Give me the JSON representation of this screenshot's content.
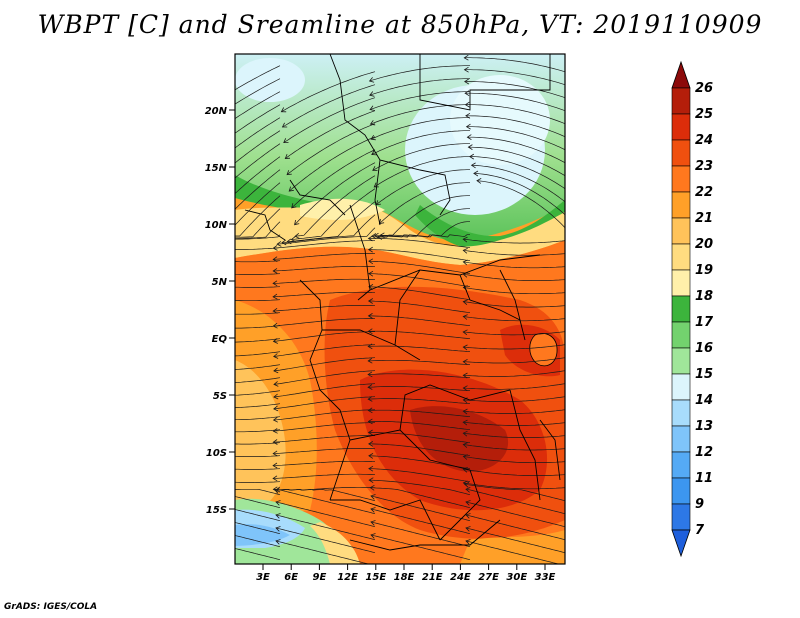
{
  "title": "WBPT [C] and Sreamline at 850hPa, VT: 2019110909",
  "footer": "GrADS: IGES/COLA",
  "map": {
    "lat_labels": [
      "20N",
      "15N",
      "10N",
      "5N",
      "EQ",
      "5S",
      "10S",
      "15S"
    ],
    "lon_labels": [
      "3E",
      "6E",
      "9E",
      "12E",
      "15E",
      "18E",
      "21E",
      "24E",
      "27E",
      "30E",
      "33E"
    ],
    "field": "WBPT",
    "units": "C",
    "level": "850hPa",
    "overlay": "streamlines"
  },
  "colorbar": {
    "levels": [
      "7",
      "9",
      "11",
      "12",
      "13",
      "14",
      "15",
      "16",
      "17",
      "18",
      "19",
      "20",
      "21",
      "22",
      "23",
      "24",
      "25",
      "26"
    ],
    "colors": [
      "#1e5fdc",
      "#2d78e6",
      "#3c96f0",
      "#55aaf5",
      "#7fc4fa",
      "#a8dcfc",
      "#dcf5fc",
      "#a0e69a",
      "#73d26e",
      "#3cb43c",
      "#fff0aa",
      "#ffdc80",
      "#ffc35a",
      "#ffa028",
      "#ff781e",
      "#f0500f",
      "#dc2d0a",
      "#b41e0a",
      "#8c0a0a"
    ]
  }
}
